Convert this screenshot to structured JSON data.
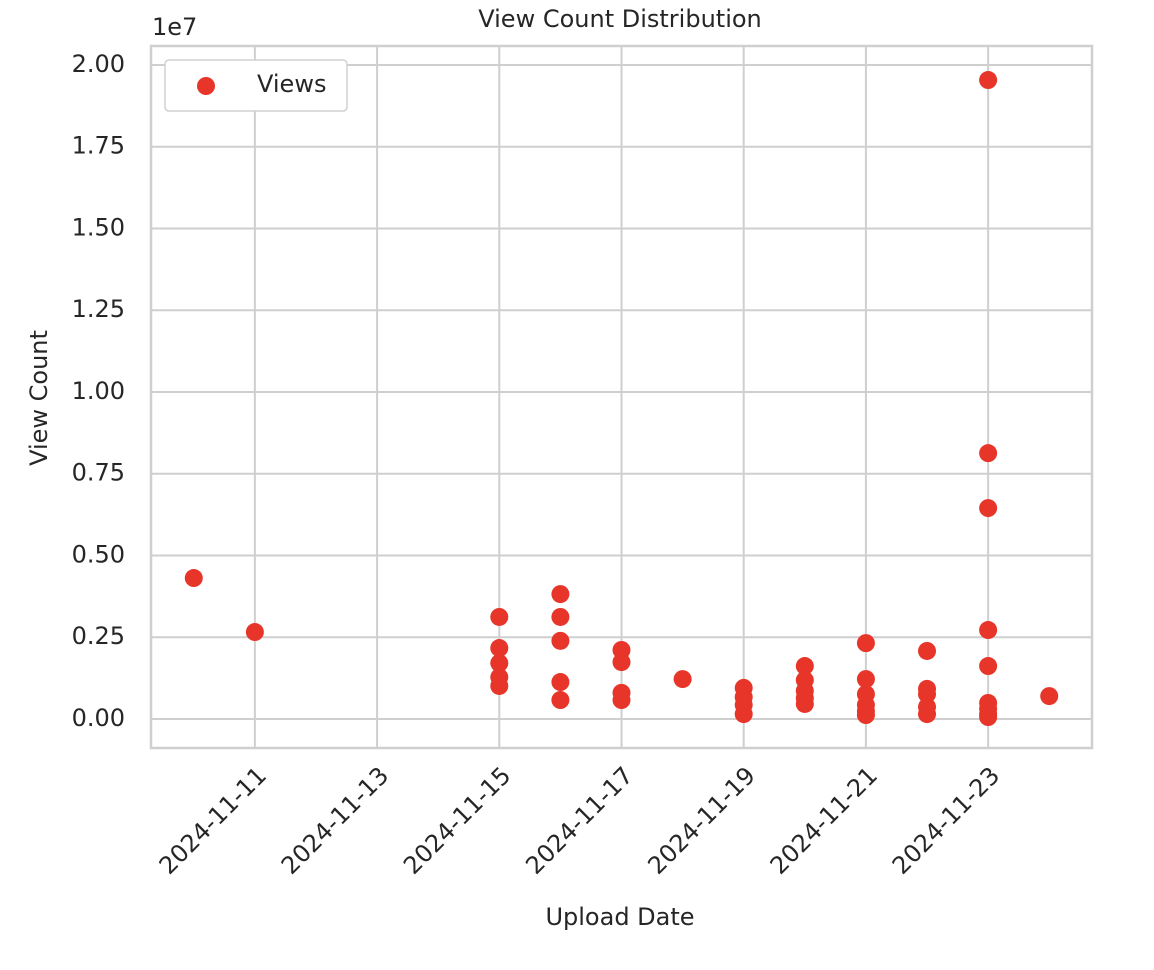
{
  "chart_data": {
    "type": "scatter",
    "title": "View Count Distribution",
    "x_label": "Upload Date",
    "y_label": "View Count",
    "y_offset_label": "1e7",
    "series": [
      {
        "name": "Views",
        "color": "#e8352a",
        "x": [
          "2024-11-10",
          "2024-11-11",
          "2024-11-15",
          "2024-11-15",
          "2024-11-15",
          "2024-11-15",
          "2024-11-15",
          "2024-11-16",
          "2024-11-16",
          "2024-11-16",
          "2024-11-16",
          "2024-11-16",
          "2024-11-17",
          "2024-11-17",
          "2024-11-17",
          "2024-11-17",
          "2024-11-18",
          "2024-11-19",
          "2024-11-19",
          "2024-11-19",
          "2024-11-19",
          "2024-11-20",
          "2024-11-20",
          "2024-11-20",
          "2024-11-20",
          "2024-11-20",
          "2024-11-21",
          "2024-11-21",
          "2024-11-21",
          "2024-11-21",
          "2024-11-21",
          "2024-11-21",
          "2024-11-22",
          "2024-11-22",
          "2024-11-22",
          "2024-11-22",
          "2024-11-22",
          "2024-11-23",
          "2024-11-23",
          "2024-11-23",
          "2024-11-23",
          "2024-11-23",
          "2024-11-23",
          "2024-11-23",
          "2024-11-23",
          "2024-11-23",
          "2024-11-24"
        ],
        "values": [
          0.431,
          0.266,
          0.312,
          0.217,
          0.171,
          0.128,
          0.101,
          0.382,
          0.312,
          0.239,
          0.113,
          0.058,
          0.211,
          0.174,
          0.08,
          0.058,
          0.122,
          0.095,
          0.067,
          0.043,
          0.015,
          0.162,
          0.119,
          0.086,
          0.064,
          0.046,
          0.232,
          0.122,
          0.076,
          0.043,
          0.024,
          0.012,
          0.208,
          0.092,
          0.076,
          0.037,
          0.015,
          1.954,
          0.813,
          0.645,
          0.272,
          0.162,
          0.049,
          0.031,
          0.015,
          0.006,
          0.07
        ]
      }
    ],
    "xlim": [
      "2024-11-09T07:12",
      "2024-11-24T16:48"
    ],
    "xticks": [
      "2024-11-11",
      "2024-11-13",
      "2024-11-15",
      "2024-11-17",
      "2024-11-19",
      "2024-11-21",
      "2024-11-23"
    ],
    "ylim": [
      -0.0887,
      2.058
    ],
    "yticks": [
      {
        "value": 0,
        "label": "0.00"
      },
      {
        "value": 0.25,
        "label": "0.25"
      },
      {
        "value": 0.5,
        "label": "0.50"
      },
      {
        "value": 0.75,
        "label": "0.75"
      },
      {
        "value": 1,
        "label": "1.00"
      },
      {
        "value": 1.25,
        "label": "1.25"
      },
      {
        "value": 1.5,
        "label": "1.50"
      },
      {
        "value": 1.75,
        "label": "1.75"
      },
      {
        "value": 2,
        "label": "2.00"
      }
    ],
    "grid": true,
    "legend": "upper left"
  }
}
